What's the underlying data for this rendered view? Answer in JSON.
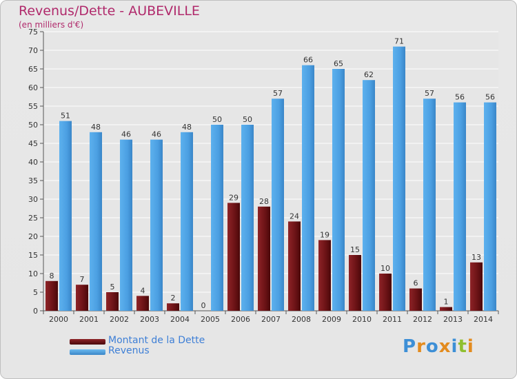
{
  "header": {
    "title": "Revenus/Dette - AUBEVILLE",
    "subtitle": "(en milliers d'€)"
  },
  "legend": {
    "items": [
      {
        "label": "Montant de la Dette",
        "color": "#7a1518"
      },
      {
        "label": "Revenus",
        "color": "#4ea3e6"
      }
    ]
  },
  "logo": {
    "text": "Proxiti",
    "colors": [
      "#3d8fd6",
      "#e38b1e",
      "#3d8fd6",
      "#e38b1e",
      "#3d8fd6",
      "#8fbf2f",
      "#e38b1e"
    ]
  },
  "chart_data": {
    "type": "bar",
    "title": "Revenus/Dette - AUBEVILLE",
    "subtitle": "(en milliers d'€)",
    "categories": [
      "2000",
      "2001",
      "2002",
      "2003",
      "2004",
      "2005",
      "2006",
      "2007",
      "2008",
      "2009",
      "2010",
      "2011",
      "2012",
      "2013",
      "2014"
    ],
    "series": [
      {
        "name": "Montant de la Dette",
        "color": "#7a1518",
        "values": [
          8,
          7,
          5,
          4,
          2,
          0,
          29,
          28,
          24,
          19,
          15,
          10,
          6,
          1,
          13
        ]
      },
      {
        "name": "Revenus",
        "color": "#4ea3e6",
        "values": [
          51,
          48,
          46,
          46,
          48,
          50,
          50,
          57,
          66,
          65,
          62,
          71,
          57,
          56,
          56
        ]
      }
    ],
    "ylim": [
      0,
      75
    ],
    "yticks": [
      0,
      5,
      10,
      15,
      20,
      25,
      30,
      35,
      40,
      45,
      50,
      55,
      60,
      65,
      70,
      75
    ],
    "grid": true,
    "legend_position": "bottom-left"
  }
}
